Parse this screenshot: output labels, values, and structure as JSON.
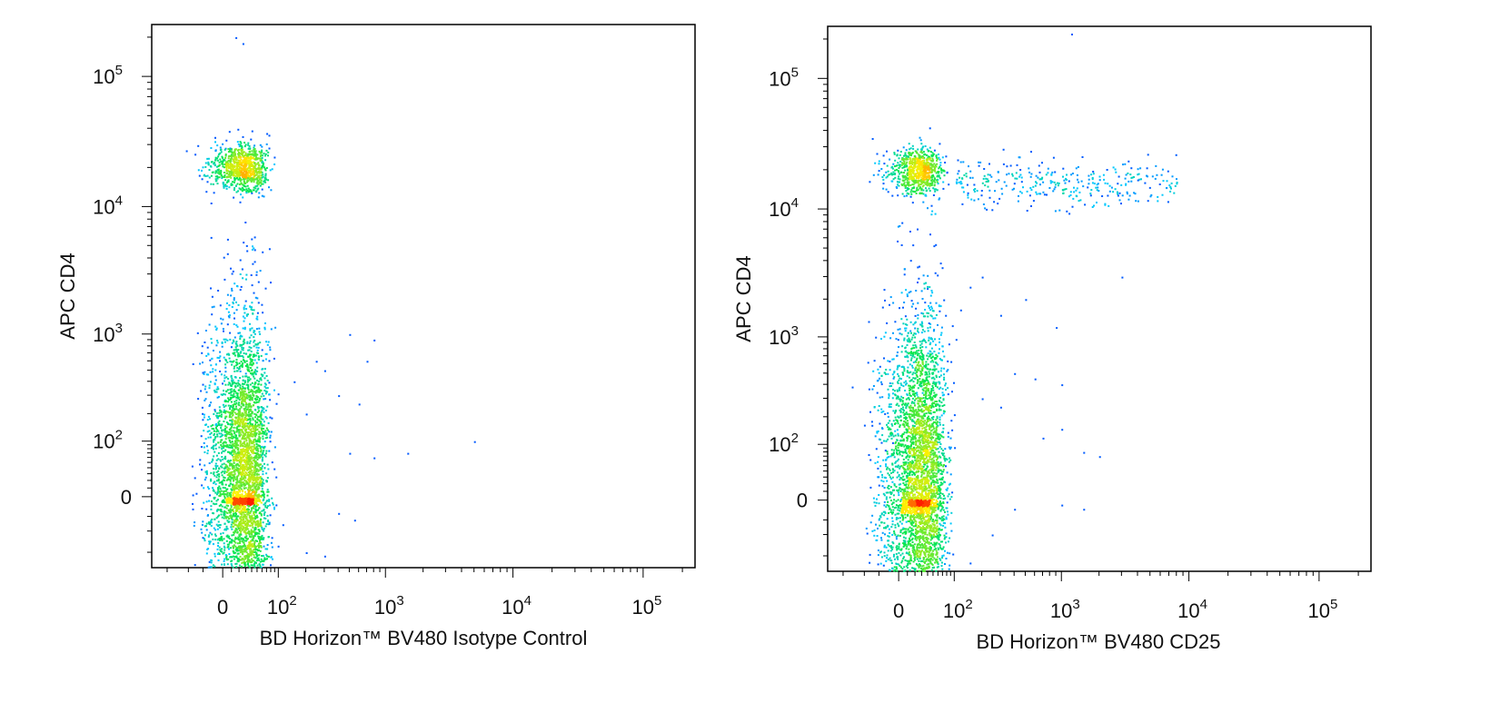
{
  "chart_data": [
    {
      "type": "scatter",
      "subtype": "flow-cytometry-density-dot-plot",
      "xlabel": "BD Horizon™ BV480 Isotype Control",
      "ylabel": "APC CD4",
      "x_scale": "biexponential",
      "y_scale": "biexponential",
      "x_ticks": [
        {
          "value": 0,
          "base": "0",
          "exp": ""
        },
        {
          "value": 100,
          "base": "10",
          "exp": "2"
        },
        {
          "value": 1000,
          "base": "10",
          "exp": "3"
        },
        {
          "value": 10000,
          "base": "10",
          "exp": "4"
        },
        {
          "value": 100000,
          "base": "10",
          "exp": "5"
        }
      ],
      "y_ticks": [
        {
          "value": 0,
          "base": "0",
          "exp": ""
        },
        {
          "value": 100,
          "base": "10",
          "exp": "2"
        },
        {
          "value": 1000,
          "base": "10",
          "exp": "3"
        },
        {
          "value": 10000,
          "base": "10",
          "exp": "4"
        },
        {
          "value": 100000,
          "base": "10",
          "exp": "5"
        }
      ],
      "xlim": [
        -150,
        250000
      ],
      "ylim": [
        -150,
        250000
      ],
      "grid": false,
      "colormap": [
        "#0000ff",
        "#00ffff",
        "#00ff00",
        "#ffff00",
        "#ff0000"
      ],
      "populations": [
        {
          "x_center": 25,
          "y_center": 20000,
          "x_spread": 20,
          "y_spread": 0.09,
          "count": 900
        },
        {
          "x_center": 25,
          "y_center": 30,
          "x_spread": 22,
          "y_spread": 0.38,
          "count": 3800
        },
        {
          "x_center": 25,
          "y_center": -3,
          "x_spread": 12,
          "y_spread": 0.015,
          "count": 300
        }
      ],
      "stray_points": [
        {
          "x": 40,
          "y": 5000
        },
        {
          "x": 30,
          "y": 3000
        },
        {
          "x": 50,
          "y": 1500
        },
        {
          "x": 250,
          "y": 600
        },
        {
          "x": 300,
          "y": 500
        },
        {
          "x": 500,
          "y": 1000
        },
        {
          "x": 700,
          "y": 600
        },
        {
          "x": 800,
          "y": 900
        },
        {
          "x": 400,
          "y": 300
        },
        {
          "x": 600,
          "y": 250
        },
        {
          "x": 150,
          "y": 400
        },
        {
          "x": 200,
          "y": 200
        },
        {
          "x": 1500,
          "y": 70
        },
        {
          "x": 5000,
          "y": 100
        },
        {
          "x": 800,
          "y": 60
        },
        {
          "x": 500,
          "y": 70
        },
        {
          "x": 400,
          "y": -20
        },
        {
          "x": 550,
          "y": -30
        },
        {
          "x": 200,
          "y": -100
        },
        {
          "x": 300,
          "y": -110
        },
        {
          "x": 25,
          "y": 180000
        },
        {
          "x": 15,
          "y": 200000
        }
      ]
    },
    {
      "type": "scatter",
      "subtype": "flow-cytometry-density-dot-plot",
      "xlabel": "BD Horizon™ BV480 CD25",
      "ylabel": "APC CD4",
      "x_scale": "biexponential",
      "y_scale": "biexponential",
      "x_ticks": [
        {
          "value": 0,
          "base": "0",
          "exp": ""
        },
        {
          "value": 100,
          "base": "10",
          "exp": "2"
        },
        {
          "value": 1000,
          "base": "10",
          "exp": "3"
        },
        {
          "value": 10000,
          "base": "10",
          "exp": "4"
        },
        {
          "value": 100000,
          "base": "10",
          "exp": "5"
        }
      ],
      "y_ticks": [
        {
          "value": 0,
          "base": "0",
          "exp": ""
        },
        {
          "value": 100,
          "base": "10",
          "exp": "2"
        },
        {
          "value": 1000,
          "base": "10",
          "exp": "3"
        },
        {
          "value": 10000,
          "base": "10",
          "exp": "4"
        },
        {
          "value": 100000,
          "base": "10",
          "exp": "5"
        }
      ],
      "xlim": [
        -150,
        250000
      ],
      "ylim": [
        -150,
        250000
      ],
      "grid": false,
      "colormap": [
        "#0000ff",
        "#00ffff",
        "#00ff00",
        "#ffff00",
        "#ff0000"
      ],
      "populations": [
        {
          "x_center": 25,
          "y_center": 20000,
          "x_spread": 20,
          "y_spread": 0.09,
          "count": 750
        },
        {
          "x_center": 25,
          "y_center": 30,
          "x_spread": 24,
          "y_spread": 0.38,
          "count": 3800
        },
        {
          "x_center": 25,
          "y_center": -3,
          "x_spread": 12,
          "y_spread": 0.015,
          "count": 300
        },
        {
          "x_min": 100,
          "x_max": 8000,
          "y_center": 16000,
          "y_spread": 0.1,
          "count": 320
        }
      ],
      "stray_points": [
        {
          "x": 200,
          "y": 3000
        },
        {
          "x": 150,
          "y": 2500
        },
        {
          "x": 500,
          "y": 2000
        },
        {
          "x": 300,
          "y": 1500
        },
        {
          "x": 900,
          "y": 1200
        },
        {
          "x": 1000,
          "y": 400
        },
        {
          "x": 400,
          "y": 500
        },
        {
          "x": 600,
          "y": 450
        },
        {
          "x": 200,
          "y": 300
        },
        {
          "x": 300,
          "y": 250
        },
        {
          "x": 1000,
          "y": 150
        },
        {
          "x": 700,
          "y": 120
        },
        {
          "x": 1500,
          "y": 80
        },
        {
          "x": 3000,
          "y": 3000
        },
        {
          "x": 400,
          "y": -10
        },
        {
          "x": 1000,
          "y": -5
        },
        {
          "x": 1500,
          "y": -10
        },
        {
          "x": 2000,
          "y": 70
        },
        {
          "x": 250,
          "y": -50
        },
        {
          "x": 150,
          "y": -120
        },
        {
          "x": 1200,
          "y": 220000
        }
      ]
    }
  ]
}
